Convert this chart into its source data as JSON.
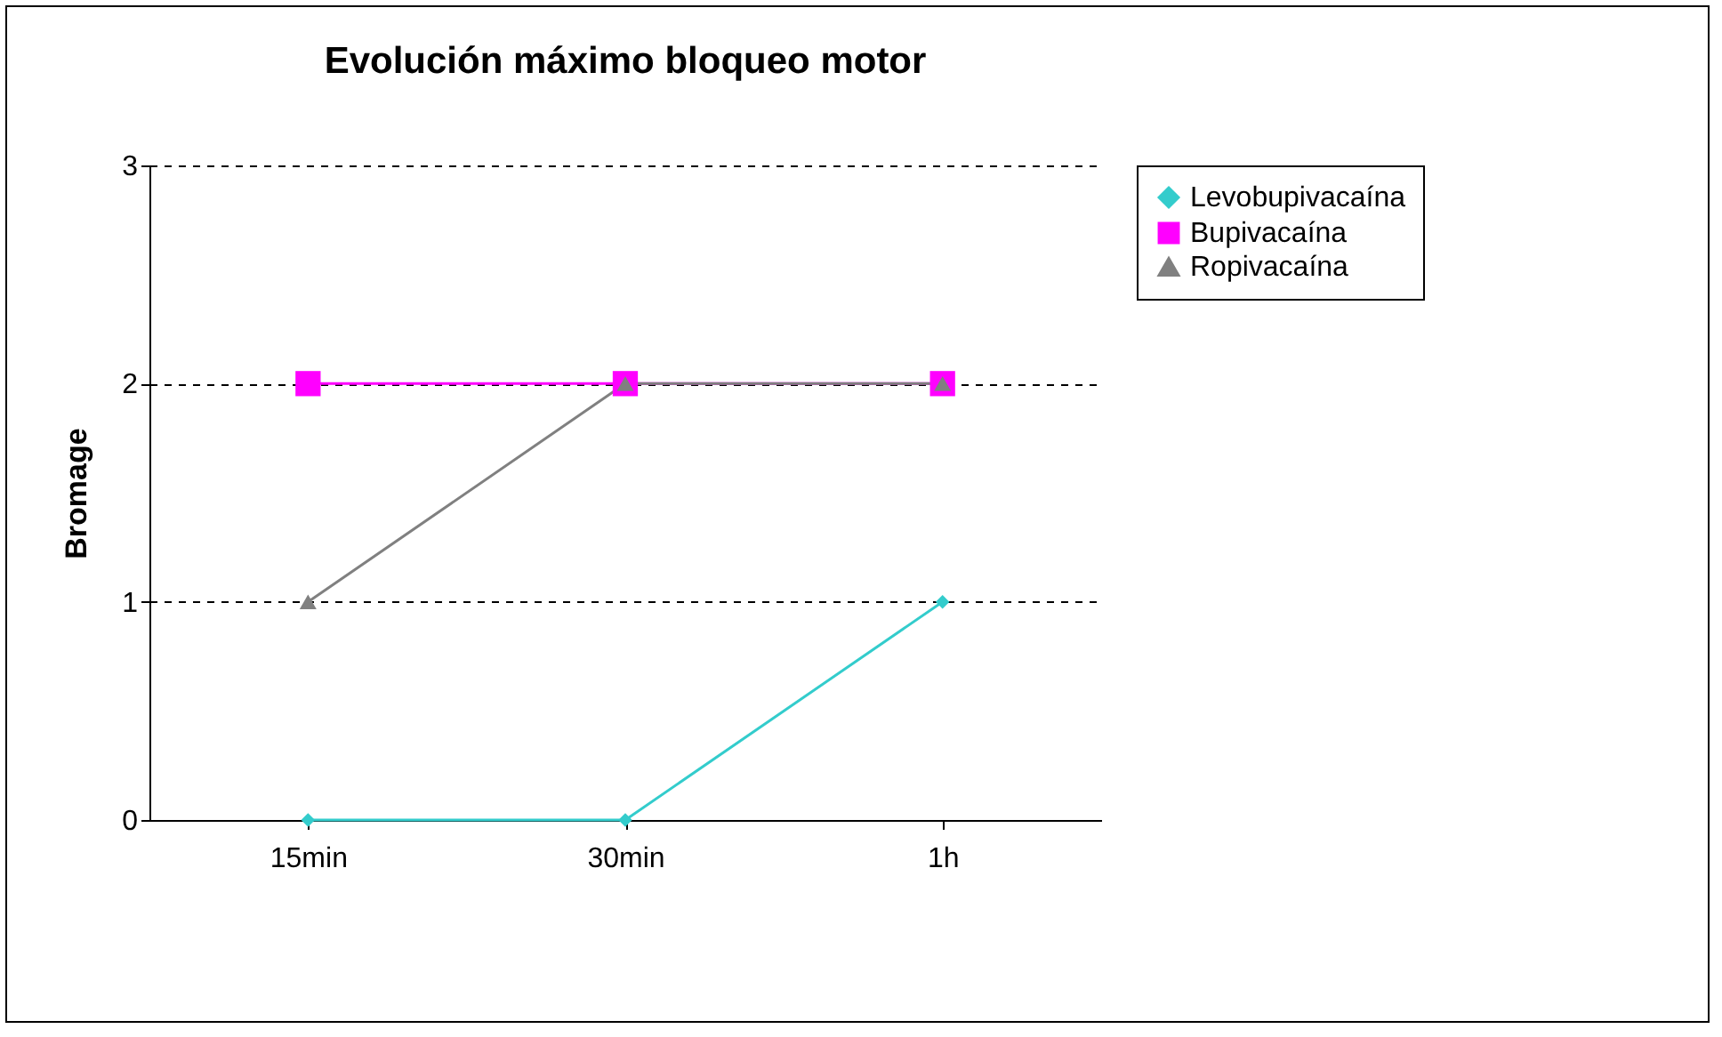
{
  "chart_data": {
    "type": "line",
    "title": "Evolución máximo bloqueo motor",
    "ylabel": "Bromage",
    "categories": [
      "15min",
      "30min",
      "1h"
    ],
    "series": [
      {
        "name": "Levobupivacaína",
        "color": "#33cccc",
        "marker": "diamond",
        "values": [
          0,
          0,
          1
        ]
      },
      {
        "name": "Bupivacaína",
        "color": "#ff00ff",
        "marker": "square",
        "values": [
          2,
          2,
          2
        ]
      },
      {
        "name": "Ropivacaína",
        "color": "#808080",
        "marker": "triangle",
        "values": [
          1,
          2,
          2
        ]
      }
    ],
    "ylim": [
      0,
      3
    ],
    "yticks": [
      0,
      1,
      2,
      3
    ],
    "grid": "y",
    "line_style": "solid",
    "legend": "right"
  }
}
